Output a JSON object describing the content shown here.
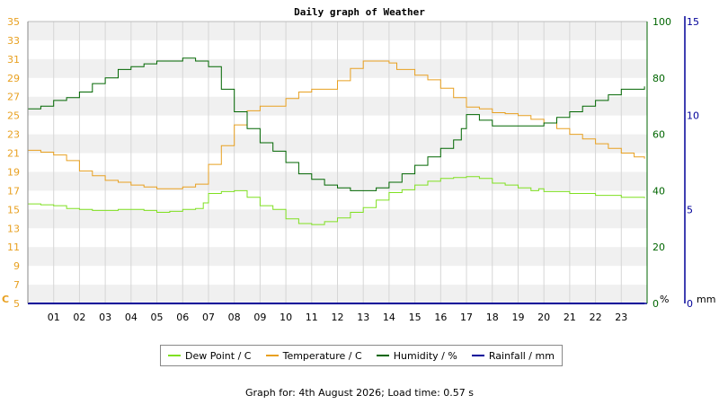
{
  "chart_data": {
    "type": "line",
    "title": "Daily graph of Weather",
    "x_ticks": [
      "01",
      "02",
      "03",
      "04",
      "05",
      "06",
      "07",
      "08",
      "09",
      "10",
      "11",
      "12",
      "13",
      "14",
      "15",
      "16",
      "17",
      "18",
      "19",
      "20",
      "21",
      "22",
      "23"
    ],
    "xlim": [
      0,
      24
    ],
    "axes": {
      "left": {
        "unit": "C",
        "min": 5,
        "max": 35,
        "ticks": [
          5,
          7,
          9,
          11,
          13,
          15,
          17,
          19,
          21,
          23,
          25,
          27,
          29,
          31,
          33,
          35
        ],
        "color": "#e8a020"
      },
      "humidity": {
        "unit": "%",
        "min": 0,
        "max": 100,
        "ticks": [
          0,
          20,
          40,
          60,
          80,
          100
        ],
        "color": "#006600"
      },
      "rain": {
        "unit": "mm",
        "min": 0,
        "max": 15,
        "ticks": [
          0,
          5,
          10,
          15
        ],
        "color": "#000099"
      }
    },
    "series": [
      {
        "name": "Dew Point / C",
        "axis": "left",
        "color": "#7fe020",
        "points": [
          [
            0,
            15.6
          ],
          [
            0.5,
            15.5
          ],
          [
            1,
            15.4
          ],
          [
            1.5,
            15.1
          ],
          [
            2,
            15.0
          ],
          [
            2.5,
            14.9
          ],
          [
            3,
            14.9
          ],
          [
            3.5,
            15.0
          ],
          [
            4,
            15.0
          ],
          [
            4.5,
            14.9
          ],
          [
            5,
            14.7
          ],
          [
            5.5,
            14.8
          ],
          [
            6,
            15.0
          ],
          [
            6.5,
            15.1
          ],
          [
            6.8,
            15.7
          ],
          [
            7,
            16.7
          ],
          [
            7.5,
            16.9
          ],
          [
            8,
            17.0
          ],
          [
            8.5,
            16.3
          ],
          [
            9,
            15.4
          ],
          [
            9.5,
            15.0
          ],
          [
            10,
            14.0
          ],
          [
            10.5,
            13.5
          ],
          [
            11,
            13.4
          ],
          [
            11.5,
            13.7
          ],
          [
            12,
            14.1
          ],
          [
            12.5,
            14.7
          ],
          [
            13,
            15.2
          ],
          [
            13.5,
            16.0
          ],
          [
            14,
            16.8
          ],
          [
            14.5,
            17.1
          ],
          [
            15,
            17.6
          ],
          [
            15.5,
            18.0
          ],
          [
            16,
            18.3
          ],
          [
            16.5,
            18.4
          ],
          [
            17,
            18.5
          ],
          [
            17.5,
            18.3
          ],
          [
            18,
            17.8
          ],
          [
            18.5,
            17.6
          ],
          [
            19,
            17.3
          ],
          [
            19.5,
            17.0
          ],
          [
            19.8,
            17.2
          ],
          [
            20,
            16.9
          ],
          [
            21,
            16.7
          ],
          [
            22,
            16.5
          ],
          [
            23,
            16.3
          ],
          [
            23.9,
            16.2
          ]
        ]
      },
      {
        "name": "Temperature / C",
        "axis": "left",
        "color": "#e8a020",
        "points": [
          [
            0,
            21.3
          ],
          [
            0.5,
            21.1
          ],
          [
            1,
            20.8
          ],
          [
            1.5,
            20.2
          ],
          [
            2,
            19.1
          ],
          [
            2.5,
            18.6
          ],
          [
            3,
            18.1
          ],
          [
            3.5,
            17.9
          ],
          [
            4,
            17.6
          ],
          [
            4.5,
            17.4
          ],
          [
            5,
            17.2
          ],
          [
            5.5,
            17.2
          ],
          [
            6,
            17.4
          ],
          [
            6.5,
            17.7
          ],
          [
            7,
            19.8
          ],
          [
            7.5,
            21.8
          ],
          [
            8,
            24.0
          ],
          [
            8.5,
            25.5
          ],
          [
            9,
            26.0
          ],
          [
            9.5,
            26.0
          ],
          [
            10,
            26.8
          ],
          [
            10.5,
            27.5
          ],
          [
            11,
            27.8
          ],
          [
            11.5,
            27.8
          ],
          [
            12,
            28.7
          ],
          [
            12.5,
            30.0
          ],
          [
            13,
            30.8
          ],
          [
            13.5,
            30.8
          ],
          [
            14,
            30.6
          ],
          [
            14.3,
            29.9
          ],
          [
            15,
            29.3
          ],
          [
            15.5,
            28.8
          ],
          [
            16,
            27.9
          ],
          [
            16.5,
            26.9
          ],
          [
            17,
            25.9
          ],
          [
            17.5,
            25.7
          ],
          [
            18,
            25.3
          ],
          [
            18.5,
            25.2
          ],
          [
            19,
            25.0
          ],
          [
            19.5,
            24.6
          ],
          [
            20,
            24.2
          ],
          [
            20.5,
            23.6
          ],
          [
            21,
            23.0
          ],
          [
            21.5,
            22.5
          ],
          [
            22,
            22.0
          ],
          [
            22.5,
            21.5
          ],
          [
            23,
            21.0
          ],
          [
            23.5,
            20.6
          ],
          [
            23.9,
            20.4
          ]
        ]
      },
      {
        "name": "Humidity / %",
        "axis": "humidity",
        "color": "#006600",
        "points": [
          [
            0,
            69
          ],
          [
            0.5,
            70
          ],
          [
            1,
            72
          ],
          [
            1.5,
            73
          ],
          [
            2,
            75
          ],
          [
            2.5,
            78
          ],
          [
            3,
            80
          ],
          [
            3.5,
            83
          ],
          [
            4,
            84
          ],
          [
            4.5,
            85
          ],
          [
            5,
            86
          ],
          [
            5.5,
            86
          ],
          [
            6,
            87
          ],
          [
            6.5,
            86
          ],
          [
            7,
            84
          ],
          [
            7.5,
            76
          ],
          [
            8,
            68
          ],
          [
            8.5,
            62
          ],
          [
            9,
            57
          ],
          [
            9.5,
            54
          ],
          [
            10,
            50
          ],
          [
            10.5,
            46
          ],
          [
            11,
            44
          ],
          [
            11.5,
            42
          ],
          [
            12,
            41
          ],
          [
            12.5,
            40
          ],
          [
            13,
            40
          ],
          [
            13.5,
            41
          ],
          [
            14,
            43
          ],
          [
            14.5,
            46
          ],
          [
            15,
            49
          ],
          [
            15.5,
            52
          ],
          [
            16,
            55
          ],
          [
            16.5,
            58
          ],
          [
            16.8,
            62
          ],
          [
            17,
            67
          ],
          [
            17.5,
            65
          ],
          [
            18,
            63
          ],
          [
            18.5,
            63
          ],
          [
            19,
            63
          ],
          [
            19.5,
            63
          ],
          [
            20,
            64
          ],
          [
            20.5,
            66
          ],
          [
            21,
            68
          ],
          [
            21.5,
            70
          ],
          [
            22,
            72
          ],
          [
            22.5,
            74
          ],
          [
            23,
            76
          ],
          [
            23.9,
            77
          ]
        ]
      },
      {
        "name": "Rainfall / mm",
        "axis": "rain",
        "color": "#000099",
        "points": [
          [
            0,
            0
          ],
          [
            23.9,
            0
          ]
        ]
      }
    ],
    "legend_position": "bottom"
  },
  "footer": {
    "text": "Graph for: 4th August 2026; Load time: 0.57 s"
  }
}
